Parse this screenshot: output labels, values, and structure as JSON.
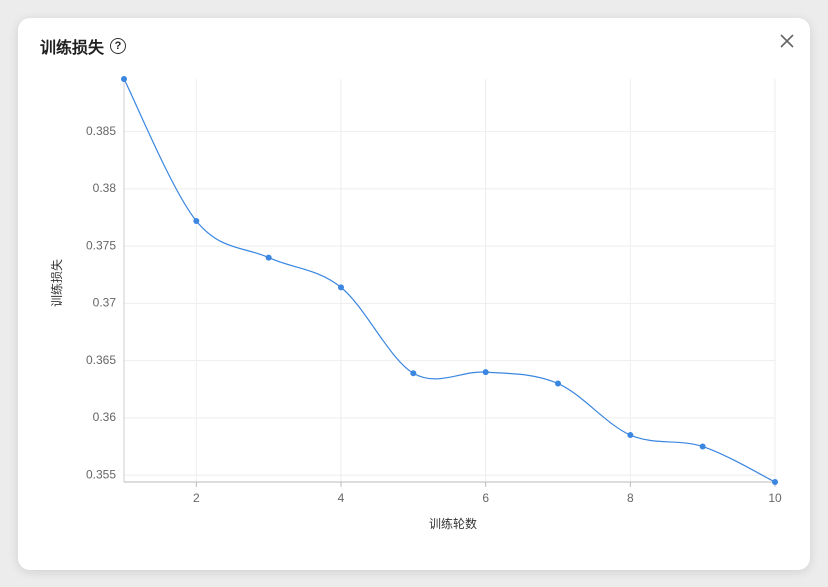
{
  "header": {
    "title": "训练损失"
  },
  "chart_data": {
    "type": "line",
    "x_label": "训练轮数",
    "y_label": "训练损失",
    "x": [
      1,
      2,
      3,
      4,
      5,
      6,
      7,
      8,
      9,
      10
    ],
    "series": [
      {
        "name": "训练损失",
        "color": "#3a86e0",
        "values": [
          0.3896,
          0.3772,
          0.374,
          0.3714,
          0.3639,
          0.364,
          0.363,
          0.3585,
          0.3575,
          0.3544
        ]
      }
    ],
    "xlim": [
      1,
      10
    ],
    "xticks": [
      2,
      4,
      6,
      8,
      10
    ],
    "ylim": [
      0.3544,
      0.3896
    ],
    "yticks": [
      0.355,
      0.36,
      0.365,
      0.37,
      0.375,
      0.38,
      0.385
    ],
    "grid": true
  }
}
